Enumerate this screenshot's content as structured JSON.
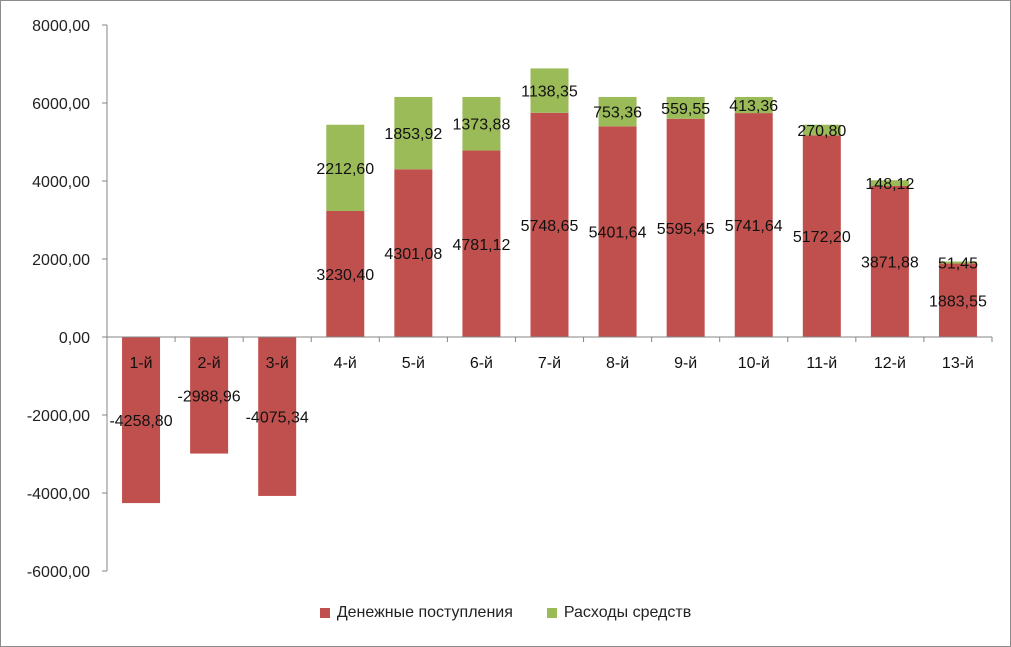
{
  "chart_data": {
    "type": "bar",
    "stacked": true,
    "categories": [
      "1-й",
      "2-й",
      "3-й",
      "4-й",
      "5-й",
      "6-й",
      "7-й",
      "8-й",
      "9-й",
      "10-й",
      "11-й",
      "12-й",
      "13-й"
    ],
    "series": [
      {
        "name": "Денежные поступления",
        "color": "#c0504d",
        "values": [
          -4258.8,
          -2988.96,
          -4075.34,
          3230.4,
          4301.08,
          4781.12,
          5748.65,
          5401.64,
          5595.45,
          5741.64,
          5172.2,
          3871.88,
          1883.55
        ],
        "labels": [
          "-4258,80",
          "-2988,96",
          "-4075,34",
          "3230,40",
          "4301,08",
          "4781,12",
          "5748,65",
          "5401,64",
          "5595,45",
          "5741,64",
          "5172,20",
          "3871,88",
          "1883,55"
        ]
      },
      {
        "name": "Расходы средств",
        "color": "#9bbb59",
        "values": [
          null,
          null,
          null,
          2212.6,
          1853.92,
          1373.88,
          1138.35,
          753.36,
          559.55,
          413.36,
          270.8,
          148.12,
          51.45
        ],
        "labels": [
          "",
          "",
          "",
          "2212,60",
          "1853,92",
          "1373,88",
          "1138,35",
          "753,36",
          "559,55",
          "413,36",
          "270,80",
          "148,12",
          "51,45"
        ]
      }
    ],
    "ylim": [
      -6000,
      8000
    ],
    "yticks": [
      -6000,
      -4000,
      -2000,
      0,
      2000,
      4000,
      6000,
      8000
    ],
    "ytick_labels": [
      "-6000,00",
      "-4000,00",
      "-2000,00",
      "0,00",
      "2000,00",
      "4000,00",
      "6000,00",
      "8000,00"
    ],
    "title": "",
    "xlabel": "",
    "ylabel": "",
    "grid": false,
    "legend_position": "bottom"
  }
}
